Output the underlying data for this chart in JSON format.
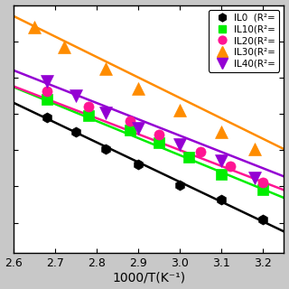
{
  "xlabel": "1000/T(K⁻¹)",
  "xlim": [
    2.6,
    3.25
  ],
  "x_ticks": [
    2.6,
    2.7,
    2.8,
    2.9,
    3.0,
    3.1,
    3.2
  ],
  "series": [
    {
      "label": "IL0  (R²=",
      "color": "#000000",
      "marker": "h",
      "markersize": 8,
      "data_x": [
        2.68,
        2.75,
        2.82,
        2.9,
        3.0,
        3.1,
        3.2
      ],
      "data_y": [
        -1.55,
        -1.75,
        -1.98,
        -2.2,
        -2.48,
        -2.68,
        -2.95
      ],
      "fit_slope": -2.73,
      "fit_intercept": 5.75
    },
    {
      "label": "IL10(R²=",
      "color": "#00ee00",
      "marker": "s",
      "markersize": 8,
      "data_x": [
        2.68,
        2.78,
        2.88,
        2.95,
        3.02,
        3.1,
        3.2
      ],
      "data_y": [
        -1.3,
        -1.52,
        -1.72,
        -1.9,
        -2.1,
        -2.33,
        -2.55
      ],
      "fit_slope": -2.35,
      "fit_intercept": 4.98
    },
    {
      "label": "IL20(R²=",
      "color": "#ff1493",
      "marker": "o",
      "markersize": 8,
      "data_x": [
        2.68,
        2.78,
        2.88,
        2.95,
        3.05,
        3.12,
        3.2
      ],
      "data_y": [
        -1.18,
        -1.4,
        -1.6,
        -1.78,
        -2.02,
        -2.22,
        -2.45
      ],
      "fit_slope": -2.2,
      "fit_intercept": 4.6
    },
    {
      "label": "IL30(R²=",
      "color": "#ff8c00",
      "marker": "^",
      "markersize": 10,
      "data_x": [
        2.65,
        2.72,
        2.82,
        2.9,
        3.0,
        3.1,
        3.18
      ],
      "data_y": [
        -0.3,
        -0.58,
        -0.88,
        -1.15,
        -1.45,
        -1.75,
        -1.98
      ],
      "fit_slope": -2.82,
      "fit_intercept": 7.18
    },
    {
      "label": "IL40(R²=",
      "color": "#9400d3",
      "marker": "v",
      "markersize": 10,
      "data_x": [
        2.68,
        2.75,
        2.82,
        2.9,
        3.0,
        3.1,
        3.18
      ],
      "data_y": [
        -1.05,
        -1.25,
        -1.48,
        -1.7,
        -1.92,
        -2.15,
        -2.38
      ],
      "fit_slope": -2.25,
      "fit_intercept": 4.95
    }
  ],
  "legend_fontsize": 7.5,
  "tick_fontsize": 9,
  "label_fontsize": 10,
  "plot_bg": "#ffffff",
  "fig_bg": "#c8c8c8"
}
